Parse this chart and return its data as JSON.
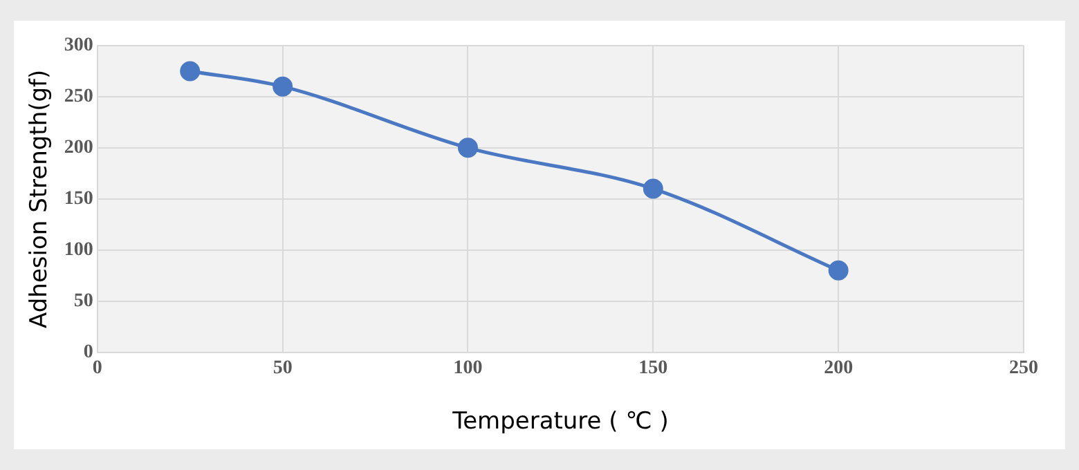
{
  "chart_data": {
    "type": "line",
    "xlabel": "Temperature ( ℃ )",
    "ylabel": "Adhesion Strength(gf)",
    "x": [
      25,
      50,
      100,
      150,
      200
    ],
    "series": [
      {
        "color": "#4a78c2",
        "values": [
          275,
          260,
          200,
          160,
          80
        ]
      }
    ],
    "xlim": [
      0,
      250
    ],
    "xticks": [
      0,
      50,
      100,
      150,
      200,
      250
    ],
    "ylim": [
      0,
      300
    ],
    "yticks": [
      0,
      50,
      100,
      150,
      200,
      250,
      300
    ],
    "grid": true,
    "marker": "circle",
    "legend": false
  }
}
